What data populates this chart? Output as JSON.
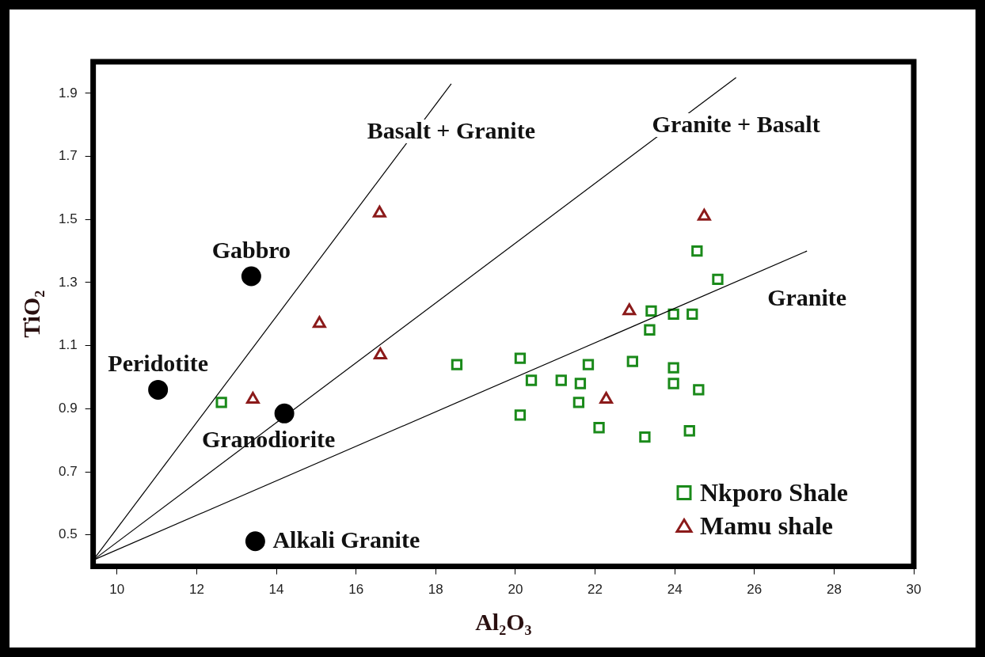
{
  "chart_data": {
    "type": "scatter",
    "xlabel": "Al₂O₃",
    "ylabel": "TiO₂",
    "xlim": [
      9.4,
      30
    ],
    "ylim": [
      0.4,
      2.0
    ],
    "xticks": [
      10,
      12,
      14,
      16,
      18,
      20,
      22,
      24,
      26,
      28,
      30
    ],
    "yticks": [
      {
        "value": 0.5,
        "label": "0.5"
      },
      {
        "value": 0.7,
        "label": "0.7"
      },
      {
        "value": 0.9,
        "label": "0.9"
      },
      {
        "value": 1.1,
        "label": "1.1"
      },
      {
        "value": 1.3,
        "label": "1.3"
      },
      {
        "value": 1.5,
        "label": "1.5"
      },
      {
        "value": 1.7,
        "label": "1.7"
      },
      {
        "value": 1.9,
        "label": "1.9"
      }
    ],
    "grid": false,
    "legend": "bottom right",
    "series": [
      {
        "type": "line",
        "name": "Basalt + Granite",
        "color": "#000000",
        "marker": "none",
        "x": [
          9.4,
          18.39
        ],
        "values": [
          0.42,
          1.93
        ]
      },
      {
        "type": "line",
        "name": "Granite + Basalt",
        "color": "#000000",
        "marker": "none",
        "x": [
          9.4,
          25.54
        ],
        "values": [
          0.42,
          1.95
        ]
      },
      {
        "type": "line",
        "name": "Granite",
        "color": "#000000",
        "marker": "none",
        "x": [
          9.4,
          27.32
        ],
        "values": [
          0.42,
          1.4
        ]
      },
      {
        "type": "scatter",
        "name": "Gabbro",
        "color": "#000000",
        "marker": "circle",
        "x": [
          13.37
        ],
        "values": [
          1.32
        ]
      },
      {
        "type": "scatter",
        "name": "Peridotite",
        "color": "#000000",
        "marker": "circle",
        "x": [
          11.03
        ],
        "values": [
          0.96
        ]
      },
      {
        "type": "scatter",
        "name": "Granodiorite",
        "color": "#000000",
        "marker": "circle",
        "x": [
          14.2
        ],
        "values": [
          0.885
        ]
      },
      {
        "type": "scatter",
        "name": "Alkali Granite",
        "color": "#000000",
        "marker": "circle",
        "x": [
          13.47
        ],
        "values": [
          0.48
        ]
      },
      {
        "type": "scatter",
        "name": "Nkporo Shale",
        "color": "#1a8a1a",
        "marker": "square",
        "x": [
          12.62,
          18.53,
          20.12,
          20.4,
          20.12,
          21.15,
          21.63,
          21.83,
          21.59,
          22.1,
          22.94,
          23.25,
          23.37,
          23.41,
          23.97,
          23.97,
          23.97,
          24.44,
          24.37,
          24.6,
          24.56,
          25.08
        ],
        "values": [
          0.92,
          1.04,
          1.06,
          0.99,
          0.88,
          0.99,
          0.98,
          1.04,
          0.92,
          0.84,
          1.05,
          0.81,
          1.15,
          1.21,
          1.2,
          1.03,
          0.98,
          1.2,
          0.83,
          0.96,
          1.4,
          1.31
        ]
      },
      {
        "type": "scatter",
        "name": "Mamu shale",
        "color": "#8b1a1a",
        "marker": "triangle",
        "x": [
          16.59,
          15.08,
          16.61,
          13.41,
          22.86,
          22.28,
          24.74
        ],
        "values": [
          1.52,
          1.17,
          1.07,
          0.93,
          1.21,
          0.93,
          1.51
        ]
      }
    ]
  }
}
